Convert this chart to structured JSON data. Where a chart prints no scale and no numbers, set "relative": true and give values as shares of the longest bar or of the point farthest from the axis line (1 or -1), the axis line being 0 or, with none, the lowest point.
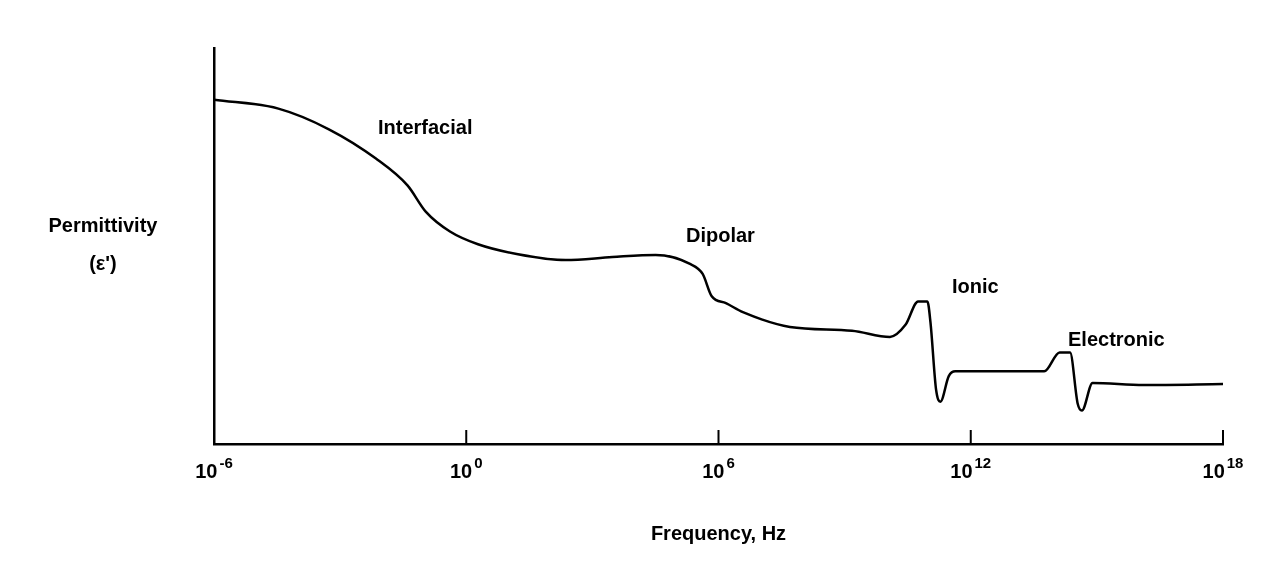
{
  "chart_data": {
    "type": "line",
    "xlabel": "Frequency, Hz",
    "ylabel": "Permittivity (ε')",
    "relative": true,
    "log": "x",
    "xlim": [
      1e-06,
      1e+18
    ],
    "xticks": [
      {
        "value": 1e-06,
        "label": "10$^{-6}$"
      },
      {
        "value": 1,
        "label": "10$^{0}$"
      },
      {
        "value": 1000000.0,
        "label": "10$^{6}$"
      },
      {
        "value": 1000000000000.0,
        "label": "10$^{12}$"
      },
      {
        "value": 1e+18,
        "label": "10$^{18}$"
      }
    ],
    "grid": false,
    "legend": false,
    "marker": "none",
    "line_style": "solid",
    "series": [
      {
        "color": "#000000",
        "x": [
          1e-06,
          3.4e-05,
          0.00054,
          0.0071,
          0.04,
          0.11,
          0.41,
          1.9,
          17,
          230,
          3000,
          32000.0,
          210000.0,
          420000.0,
          690000.0,
          1500000.0,
          3800000.0,
          50000000.0,
          1500000000.0,
          12000000000.0,
          28000000000.0,
          56000000000.0,
          93000000000.0,
          110000000000.0,
          150000000000.0,
          190000000000.0,
          300000000000.0,
          430000000000.0,
          56000000000000.0,
          130000000000000.0,
          230000000000000.0,
          350000000000000.0,
          440000000000000.0,
          790000000000000.0,
          1.3e+16,
          1e+18
        ],
        "values": [
          1,
          0.974,
          0.914,
          0.829,
          0.751,
          0.674,
          0.617,
          0.58,
          0.551,
          0.534,
          0.543,
          0.549,
          0.523,
          0.494,
          0.429,
          0.409,
          0.383,
          0.34,
          0.329,
          0.311,
          0.346,
          0.414,
          0.414,
          0.354,
          0.157,
          0.123,
          0.197,
          0.211,
          0.211,
          0.266,
          0.266,
          0.117,
          0.097,
          0.177,
          0.171,
          0.174
        ]
      }
    ],
    "annotations": [
      "Interfacial",
      "Dipolar",
      "Ionic",
      "Electronic"
    ]
  }
}
